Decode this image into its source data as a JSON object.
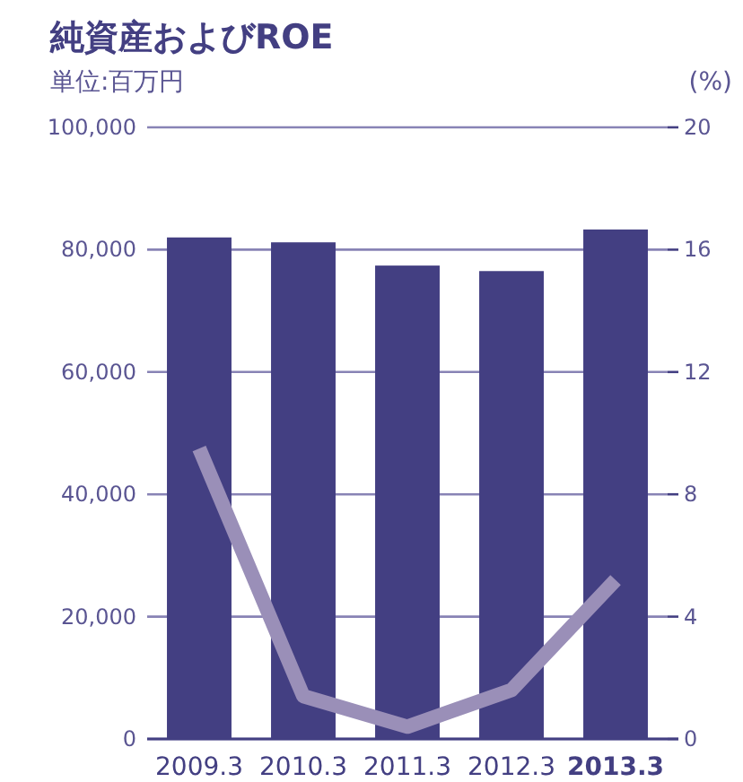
{
  "chart_data": {
    "type": "bar",
    "title": "純資産およびROE",
    "ylabel": "単位:百万円",
    "y2label": "(%)",
    "categories": [
      "2009.3",
      "2010.3",
      "2011.3",
      "2012.3",
      "**2013.3**"
    ],
    "series": [
      {
        "color": "#433f82",
        "values": [
          82000,
          81200,
          77400,
          76500,
          83300
        ]
      },
      {
        "type": "line",
        "axis": "y2",
        "color": "#9a8fb8",
        "values": [
          9.5,
          1.4,
          0.4,
          1.6,
          5.2
        ]
      }
    ],
    "ylim": [
      0,
      100000
    ],
    "yticks": [
      {
        "value": 0,
        "label": "0"
      },
      {
        "value": 20000,
        "label": "20,000"
      },
      {
        "value": 40000,
        "label": "40,000"
      },
      {
        "value": 60000,
        "label": "60,000"
      },
      {
        "value": 80000,
        "label": "80,000"
      },
      {
        "value": 100000,
        "label": "100,000"
      }
    ],
    "y2lim": [
      0,
      20
    ],
    "y2ticks": [
      0,
      4,
      8,
      12,
      16,
      20
    ],
    "grid": "y",
    "marker": "none",
    "line_style": "solid"
  }
}
